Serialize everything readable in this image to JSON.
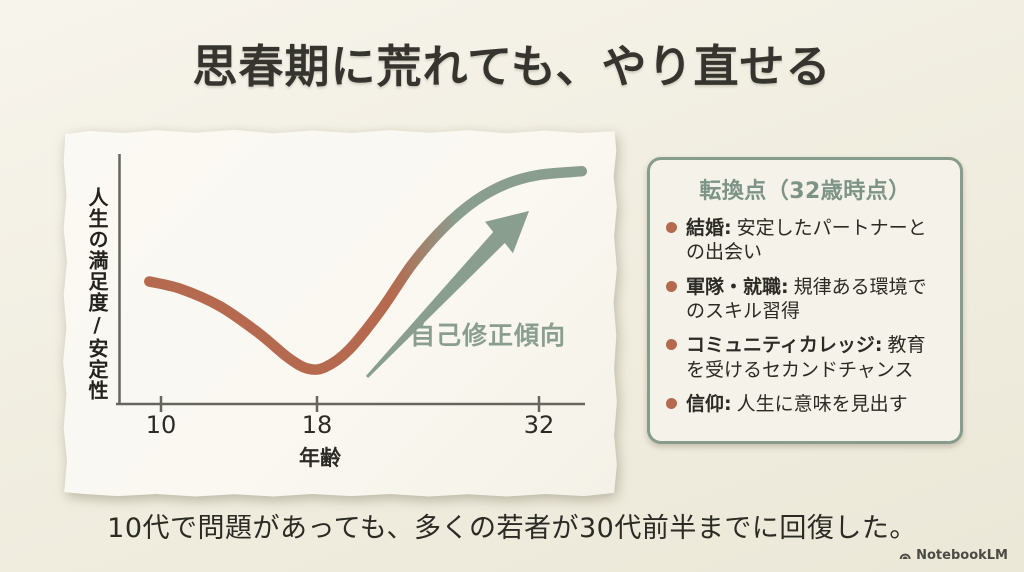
{
  "slide": {
    "title": "思春期に荒れても、やり直せる",
    "caption": "10代で問題があっても、多くの若者が30代前半までに回復した。",
    "brand": "NotebookLM"
  },
  "chart_data": {
    "type": "line",
    "title": "",
    "xlabel": "年齢",
    "ylabel": "人生の満足度/安定性",
    "x_tick_labels": [
      "10",
      "18",
      "32"
    ],
    "x_ticks_values": [
      10,
      18,
      32
    ],
    "value_range": [
      0,
      100
    ],
    "grid": false,
    "annotation": {
      "label": "自己修正傾向"
    },
    "series": [
      {
        "name": "人生の満足度/安定性",
        "color_start": "#b5694e",
        "color_end": "#8a9e8f",
        "points": [
          {
            "age": 9.4,
            "value": 50
          },
          {
            "age": 11,
            "value": 47
          },
          {
            "age": 13,
            "value": 40
          },
          {
            "age": 15,
            "value": 29
          },
          {
            "age": 16.5,
            "value": 19
          },
          {
            "age": 17.5,
            "value": 14.5
          },
          {
            "age": 18.5,
            "value": 15
          },
          {
            "age": 20,
            "value": 22
          },
          {
            "age": 22,
            "value": 38
          },
          {
            "age": 24,
            "value": 57
          },
          {
            "age": 26,
            "value": 72
          },
          {
            "age": 28,
            "value": 83
          },
          {
            "age": 30,
            "value": 90
          },
          {
            "age": 32,
            "value": 93.5
          },
          {
            "age": 34.7,
            "value": 95
          }
        ]
      }
    ]
  },
  "panel": {
    "title": "転換点（32歳時点）",
    "items": [
      {
        "label": "結婚:",
        "desc": "安定したパートナーとの出会い"
      },
      {
        "label": "軍隊・就職:",
        "desc": "規律ある環境でのスキル習得"
      },
      {
        "label": "コミュニティカレッジ:",
        "desc": "教育を受けるセカンドチャンス"
      },
      {
        "label": "信仰:",
        "desc": "人生に意味を見出す"
      }
    ]
  },
  "colors": {
    "terracotta": "#b5694e",
    "sage": "#8a9e8f",
    "panel_border": "#889c8e",
    "slide_background": "#f1eee1",
    "card_background": "#faf8f1",
    "text_dark": "#33322c"
  }
}
